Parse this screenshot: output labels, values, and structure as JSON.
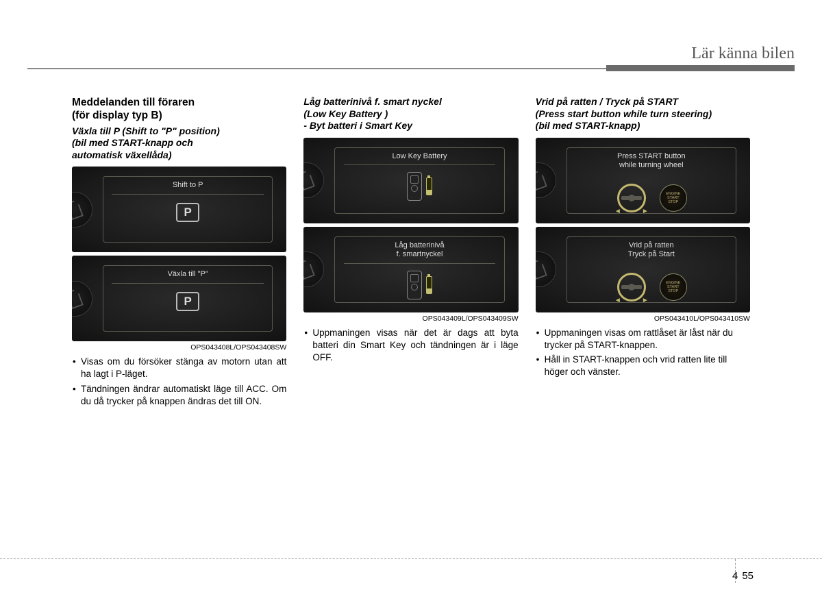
{
  "header": {
    "title": "Lär känna bilen"
  },
  "col1": {
    "title_line1": "Meddelanden till föraren",
    "title_line2": "(för display typ B)",
    "sub_line1": "Växla till P (Shift to \"P\" position)",
    "sub_line2": "(bil med START-knapp och",
    "sub_line3": "automatisk växellåda)",
    "screen1_text": "Shift to P",
    "screen2_text": "Växla till \"P\"",
    "p_label": "P",
    "caption": "OPS043408L/OPS043408SW",
    "bullet1": "Visas om du försöker stänga av motorn utan att ha lagt i P-läget.",
    "bullet2": "Tändningen ändrar automatiskt läge till ACC. Om du då trycker på knappen ändras det till ON."
  },
  "col2": {
    "sub_line1": "Låg batterinivå f. smart nyckel",
    "sub_line2": "(Low Key Battery )",
    "sub_line3": "- Byt batteri i Smart Key",
    "screen1_text": "Low Key Battery",
    "screen2_line1": "Låg batterinivå",
    "screen2_line2": "f. smartnyckel",
    "caption": "OPS043409L/OPS043409SW",
    "bullet1": "Uppmaningen visas när det är dags att byta batteri din Smart Key och tändningen är i läge OFF."
  },
  "col3": {
    "sub_line1": "Vrid på ratten / Tryck på START",
    "sub_line2": "(Press start button while turn steering)",
    "sub_line3": "(bil med START-knapp)",
    "screen1_line1": "Press START button",
    "screen1_line2": "while turning wheel",
    "screen2_line1": "Vrid på ratten",
    "screen2_line2": "Tryck på Start",
    "start_label": "ENGINE\nSTART\nSTOP",
    "caption": "OPS043410L/OPS043410SW",
    "bullet1": "Uppmaningen visas om rattlåset är låst när du trycker på START-knappen.",
    "bullet2": "Håll in START-knappen och vrid ratten lite till höger och vänster."
  },
  "footer": {
    "chapter": "4",
    "page": "55"
  }
}
